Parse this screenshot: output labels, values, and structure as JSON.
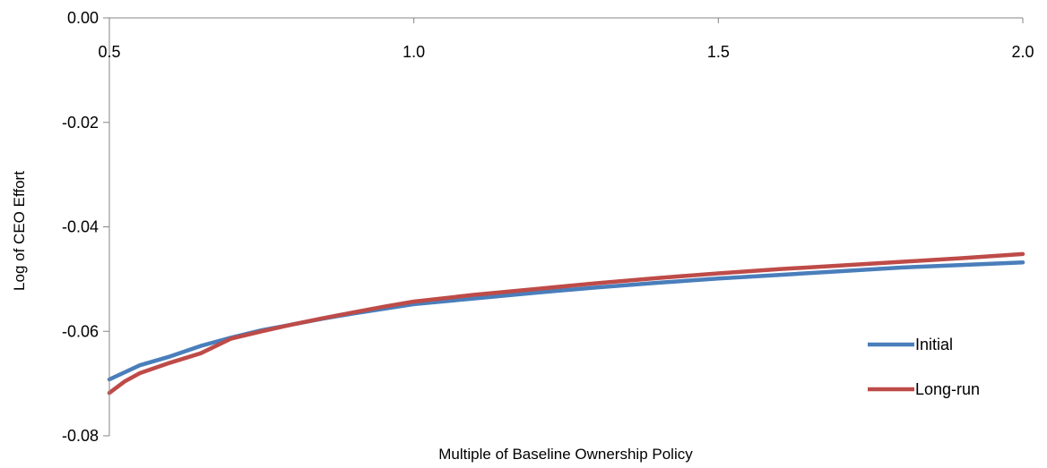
{
  "chart_data": {
    "type": "line",
    "title": "",
    "xlabel": "Multiple of Baseline Ownership Policy",
    "ylabel": "Log of CEO Effort",
    "xlim": [
      0.5,
      2.0
    ],
    "ylim": [
      -0.08,
      0.0
    ],
    "x_ticks": [
      0.5,
      1.0,
      1.5,
      2.0
    ],
    "x_tick_labels": [
      "0.5",
      "1.0",
      "1.5",
      "2.0"
    ],
    "y_ticks": [
      0.0,
      -0.02,
      -0.04,
      -0.06,
      -0.08
    ],
    "y_tick_labels": [
      "0.00",
      "-0.02",
      "-0.04",
      "-0.06",
      "-0.08"
    ],
    "x_axis_position": "top",
    "grid": false,
    "legend_position": "bottom-right",
    "series": [
      {
        "name": "Initial",
        "color": "#4a7ebb",
        "x": [
          0.5,
          0.55,
          0.6,
          0.65,
          0.7,
          0.75,
          0.8,
          0.85,
          0.9,
          0.95,
          1.0,
          1.1,
          1.2,
          1.3,
          1.4,
          1.5,
          1.6,
          1.7,
          1.8,
          1.9,
          2.0
        ],
        "values": [
          -0.0692,
          -0.0665,
          -0.0648,
          -0.0628,
          -0.0612,
          -0.0598,
          -0.0587,
          -0.0576,
          -0.0566,
          -0.0557,
          -0.0548,
          -0.0537,
          -0.0526,
          -0.0516,
          -0.0507,
          -0.0499,
          -0.0492,
          -0.0485,
          -0.0478,
          -0.0473,
          -0.0468
        ]
      },
      {
        "name": "Long-run",
        "color": "#be4b48",
        "x": [
          0.5,
          0.525,
          0.55,
          0.575,
          0.6,
          0.65,
          0.7,
          0.75,
          0.8,
          0.85,
          0.9,
          0.95,
          1.0,
          1.1,
          1.2,
          1.3,
          1.4,
          1.5,
          1.6,
          1.7,
          1.8,
          1.9,
          2.0
        ],
        "values": [
          -0.0718,
          -0.0696,
          -0.068,
          -0.067,
          -0.066,
          -0.0642,
          -0.0614,
          -0.06,
          -0.0587,
          -0.0575,
          -0.0564,
          -0.0553,
          -0.0543,
          -0.053,
          -0.0519,
          -0.0508,
          -0.0498,
          -0.0489,
          -0.0481,
          -0.0474,
          -0.0467,
          -0.046,
          -0.0452
        ]
      }
    ]
  }
}
